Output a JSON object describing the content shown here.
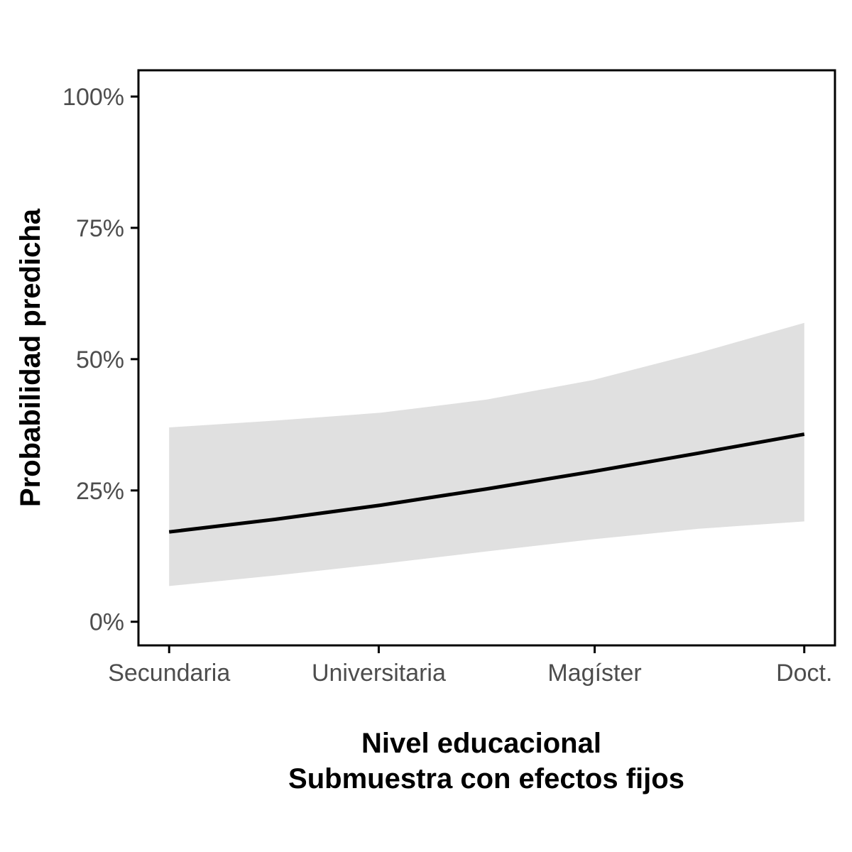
{
  "chart_data": {
    "type": "line",
    "title": "",
    "xlabel": "Nivel educacional",
    "xlabel_line2": "Submuestra con efectos fijos",
    "ylabel": "Probabilidad predicha",
    "x": [
      1,
      2,
      3,
      4
    ],
    "x_tick_labels": [
      "Secundaria",
      "Universitaria",
      "Magíster",
      "Doct."
    ],
    "x_tick_positions": [
      1.0,
      1.99,
      3.01,
      4.0
    ],
    "ylim": [
      -0.045,
      1.05
    ],
    "y_ticks": [
      0,
      0.25,
      0.5,
      0.75,
      1.0
    ],
    "y_tick_labels": [
      "0%",
      "25%",
      "50%",
      "75%",
      "100%"
    ],
    "grid": false,
    "legend": "none",
    "series": [
      {
        "x": [
          1.0,
          1.5,
          2.0,
          2.5,
          3.0,
          3.5,
          4.0
        ],
        "values": [
          0.171,
          0.195,
          0.222,
          0.253,
          0.286,
          0.321,
          0.357
        ],
        "lower": [
          0.068,
          0.088,
          0.11,
          0.134,
          0.157,
          0.177,
          0.191
        ],
        "upper": [
          0.37,
          0.383,
          0.398,
          0.423,
          0.46,
          0.512,
          0.569
        ]
      }
    ],
    "colors": {
      "line": "#000000",
      "ribbon": "#e0e0e0",
      "panel_border": "#000000",
      "tick_text": "#4d4d4d"
    }
  }
}
